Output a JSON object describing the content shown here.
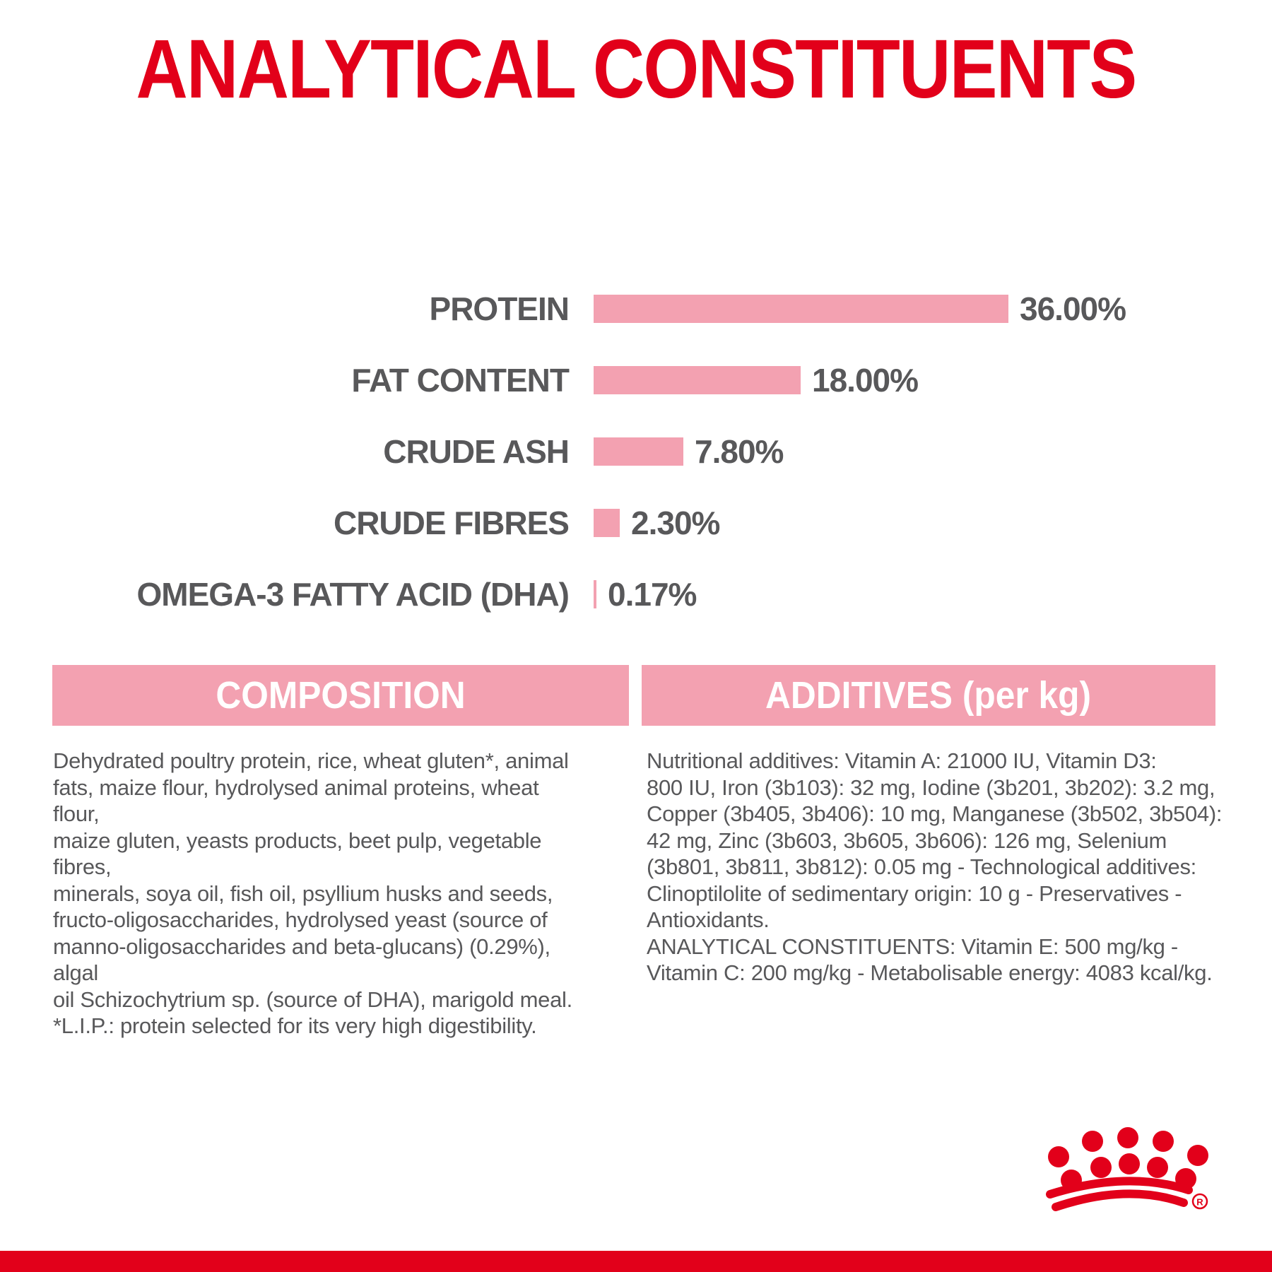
{
  "page": {
    "title": "ANALYTICAL CONSTITUENTS",
    "brand_icon": "royal-canin-crown",
    "colors": {
      "brand_red": "#e2001a",
      "bar_pink": "#f3a1b1",
      "text_gray": "#58585a"
    }
  },
  "chart_data": {
    "type": "bar",
    "orientation": "horizontal",
    "title": "ANALYTICAL CONSTITUENTS",
    "categories": [
      "PROTEIN",
      "FAT CONTENT",
      "CRUDE ASH",
      "CRUDE FIBRES",
      "OMEGA-3 FATTY ACID (DHA)"
    ],
    "values": [
      36.0,
      18.0,
      7.8,
      2.3,
      0.17
    ],
    "value_labels": [
      "36.00%",
      "18.00%",
      "7.80%",
      "2.30%",
      "0.17%"
    ],
    "unit": "percent",
    "xlim": [
      0,
      36
    ],
    "bar_color": "#f3a1b1",
    "grid": false,
    "value_label_position": "right-of-bar"
  },
  "sections": {
    "composition": {
      "header": "COMPOSITION",
      "lines": [
        "Dehydrated poultry protein, rice, wheat gluten*, animal",
        "fats, maize flour, hydrolysed animal proteins, wheat flour,",
        "maize gluten, yeasts products, beet pulp, vegetable fibres,",
        "minerals, soya oil, fish oil, psyllium husks and seeds,",
        "fructo-oligosaccharides, hydrolysed yeast (source of",
        "manno-oligosaccharides and beta-glucans) (0.29%), algal",
        "oil Schizochytrium sp. (source of DHA), marigold meal.",
        "*L.I.P.: protein selected for its very high digestibility."
      ]
    },
    "additives": {
      "header": "ADDITIVES (per kg)",
      "lines": [
        "Nutritional additives: Vitamin A: 21000 IU, Vitamin D3:",
        "800 IU, Iron (3b103): 32 mg, Iodine (3b201, 3b202): 3.2 mg,",
        "Copper (3b405, 3b406): 10 mg, Manganese (3b502, 3b504):",
        "42 mg, Zinc (3b603, 3b605, 3b606): 126 mg, Selenium",
        "(3b801, 3b811, 3b812): 0.05 mg - Technological additives:",
        "Clinoptilolite of sedimentary origin: 10 g - Preservatives -",
        "Antioxidants.",
        "ANALYTICAL CONSTITUENTS: Vitamin E: 500 mg/kg -",
        "Vitamin C: 200 mg/kg - Metabolisable energy: 4083 kcal/kg."
      ]
    }
  }
}
